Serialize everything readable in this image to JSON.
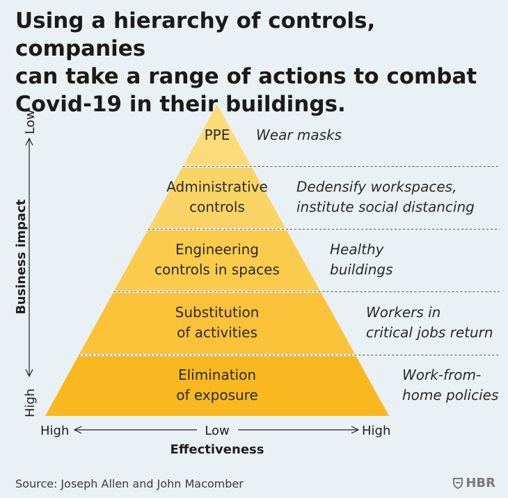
{
  "headline": [
    "Using a hierarchy of controls, companies",
    "can take a range of actions to combat",
    "Covid-19 in their buildings."
  ],
  "tiers": [
    {
      "label": [
        "PPE"
      ],
      "action": [
        "Wear masks"
      ],
      "color": "#fcdc78"
    },
    {
      "label": [
        "Administrative",
        "controls"
      ],
      "action": [
        "Dedensify workspaces,",
        "institute social distancing"
      ],
      "color": "#fbd466"
    },
    {
      "label": [
        "Engineering",
        "controls in spaces"
      ],
      "action": [
        "Healthy",
        "buildings"
      ],
      "color": "#fbcb4c"
    },
    {
      "label": [
        "Substitution",
        "of activities"
      ],
      "action": [
        "Workers in",
        "critical jobs return"
      ],
      "color": "#fbc23a"
    },
    {
      "label": [
        "Elimination",
        "of exposure"
      ],
      "action": [
        "Work-from-",
        "home policies"
      ],
      "color": "#f9b81f"
    }
  ],
  "y_axis": {
    "title": "Business impact",
    "top": "Low",
    "bottom": "High"
  },
  "x_axis": {
    "title": "Effectiveness",
    "left": "High",
    "middle": "Low",
    "right": "High"
  },
  "source": "Source: Joseph Allen and John Macomber",
  "brand": "HBR",
  "colors": {
    "background": "#e9f1f5",
    "divider": "#555555",
    "text": "#1e1e1e"
  }
}
